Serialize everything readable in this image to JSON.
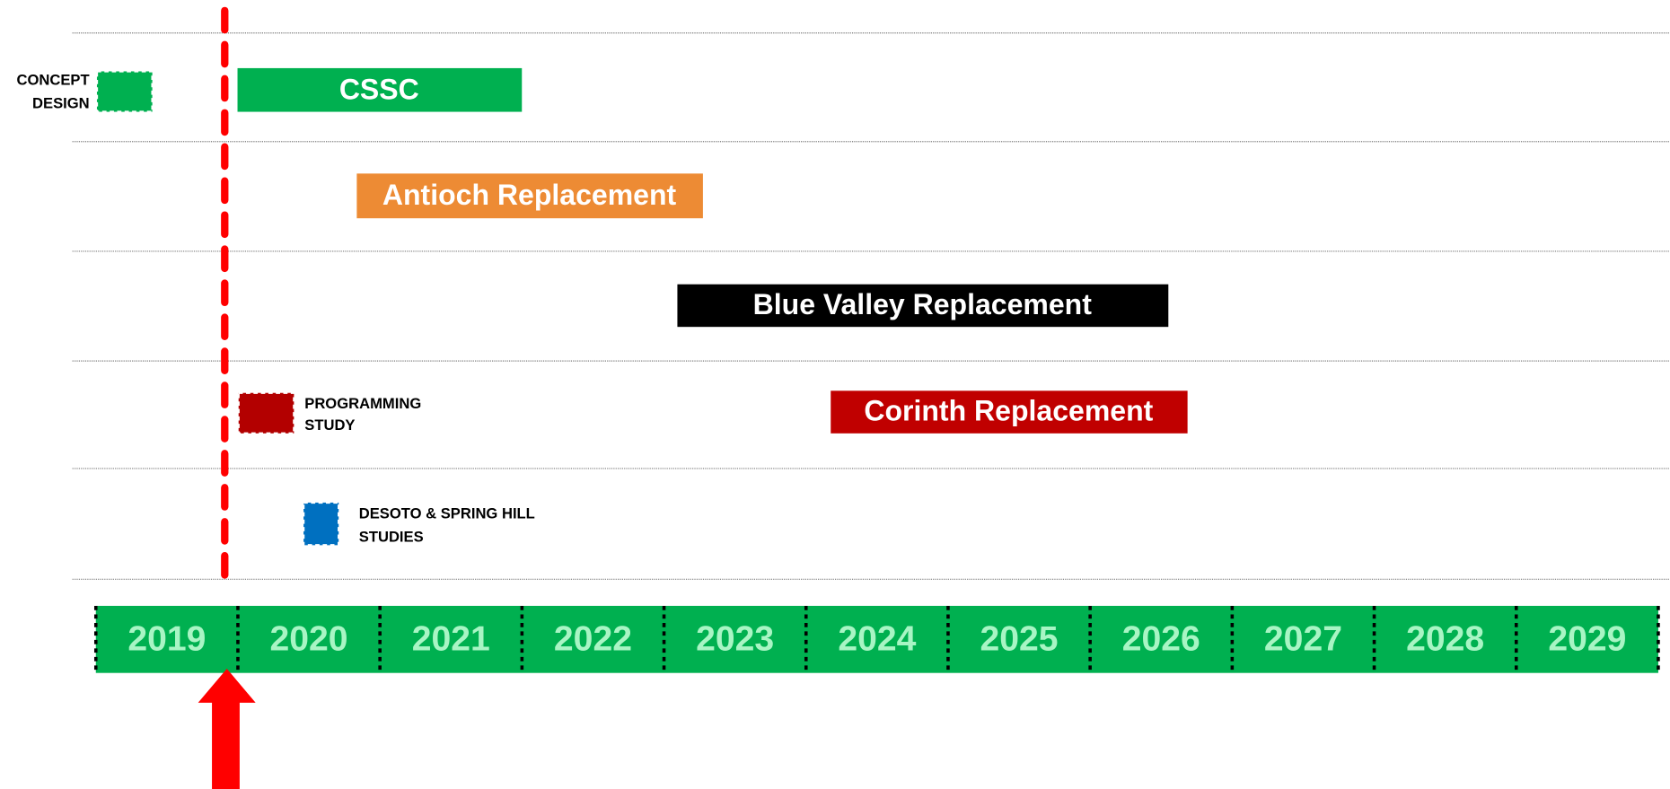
{
  "years": [
    2019,
    2020,
    2021,
    2022,
    2023,
    2024,
    2025,
    2026,
    2027,
    2028,
    2029
  ],
  "tasks": [
    {
      "label": "CSSC"
    },
    {
      "label": "Antioch Replacement"
    },
    {
      "label": "Blue Valley Replacement"
    },
    {
      "label": "Corinth Replacement"
    }
  ],
  "milestones": [
    {
      "label_lines": [
        "CONCEPT",
        "DESIGN"
      ]
    },
    {
      "label_lines": [
        "PROGRAMMING",
        "STUDY"
      ]
    },
    {
      "label_lines": [
        "DESOTO & SPRING HILL",
        "STUDIES"
      ]
    }
  ]
}
